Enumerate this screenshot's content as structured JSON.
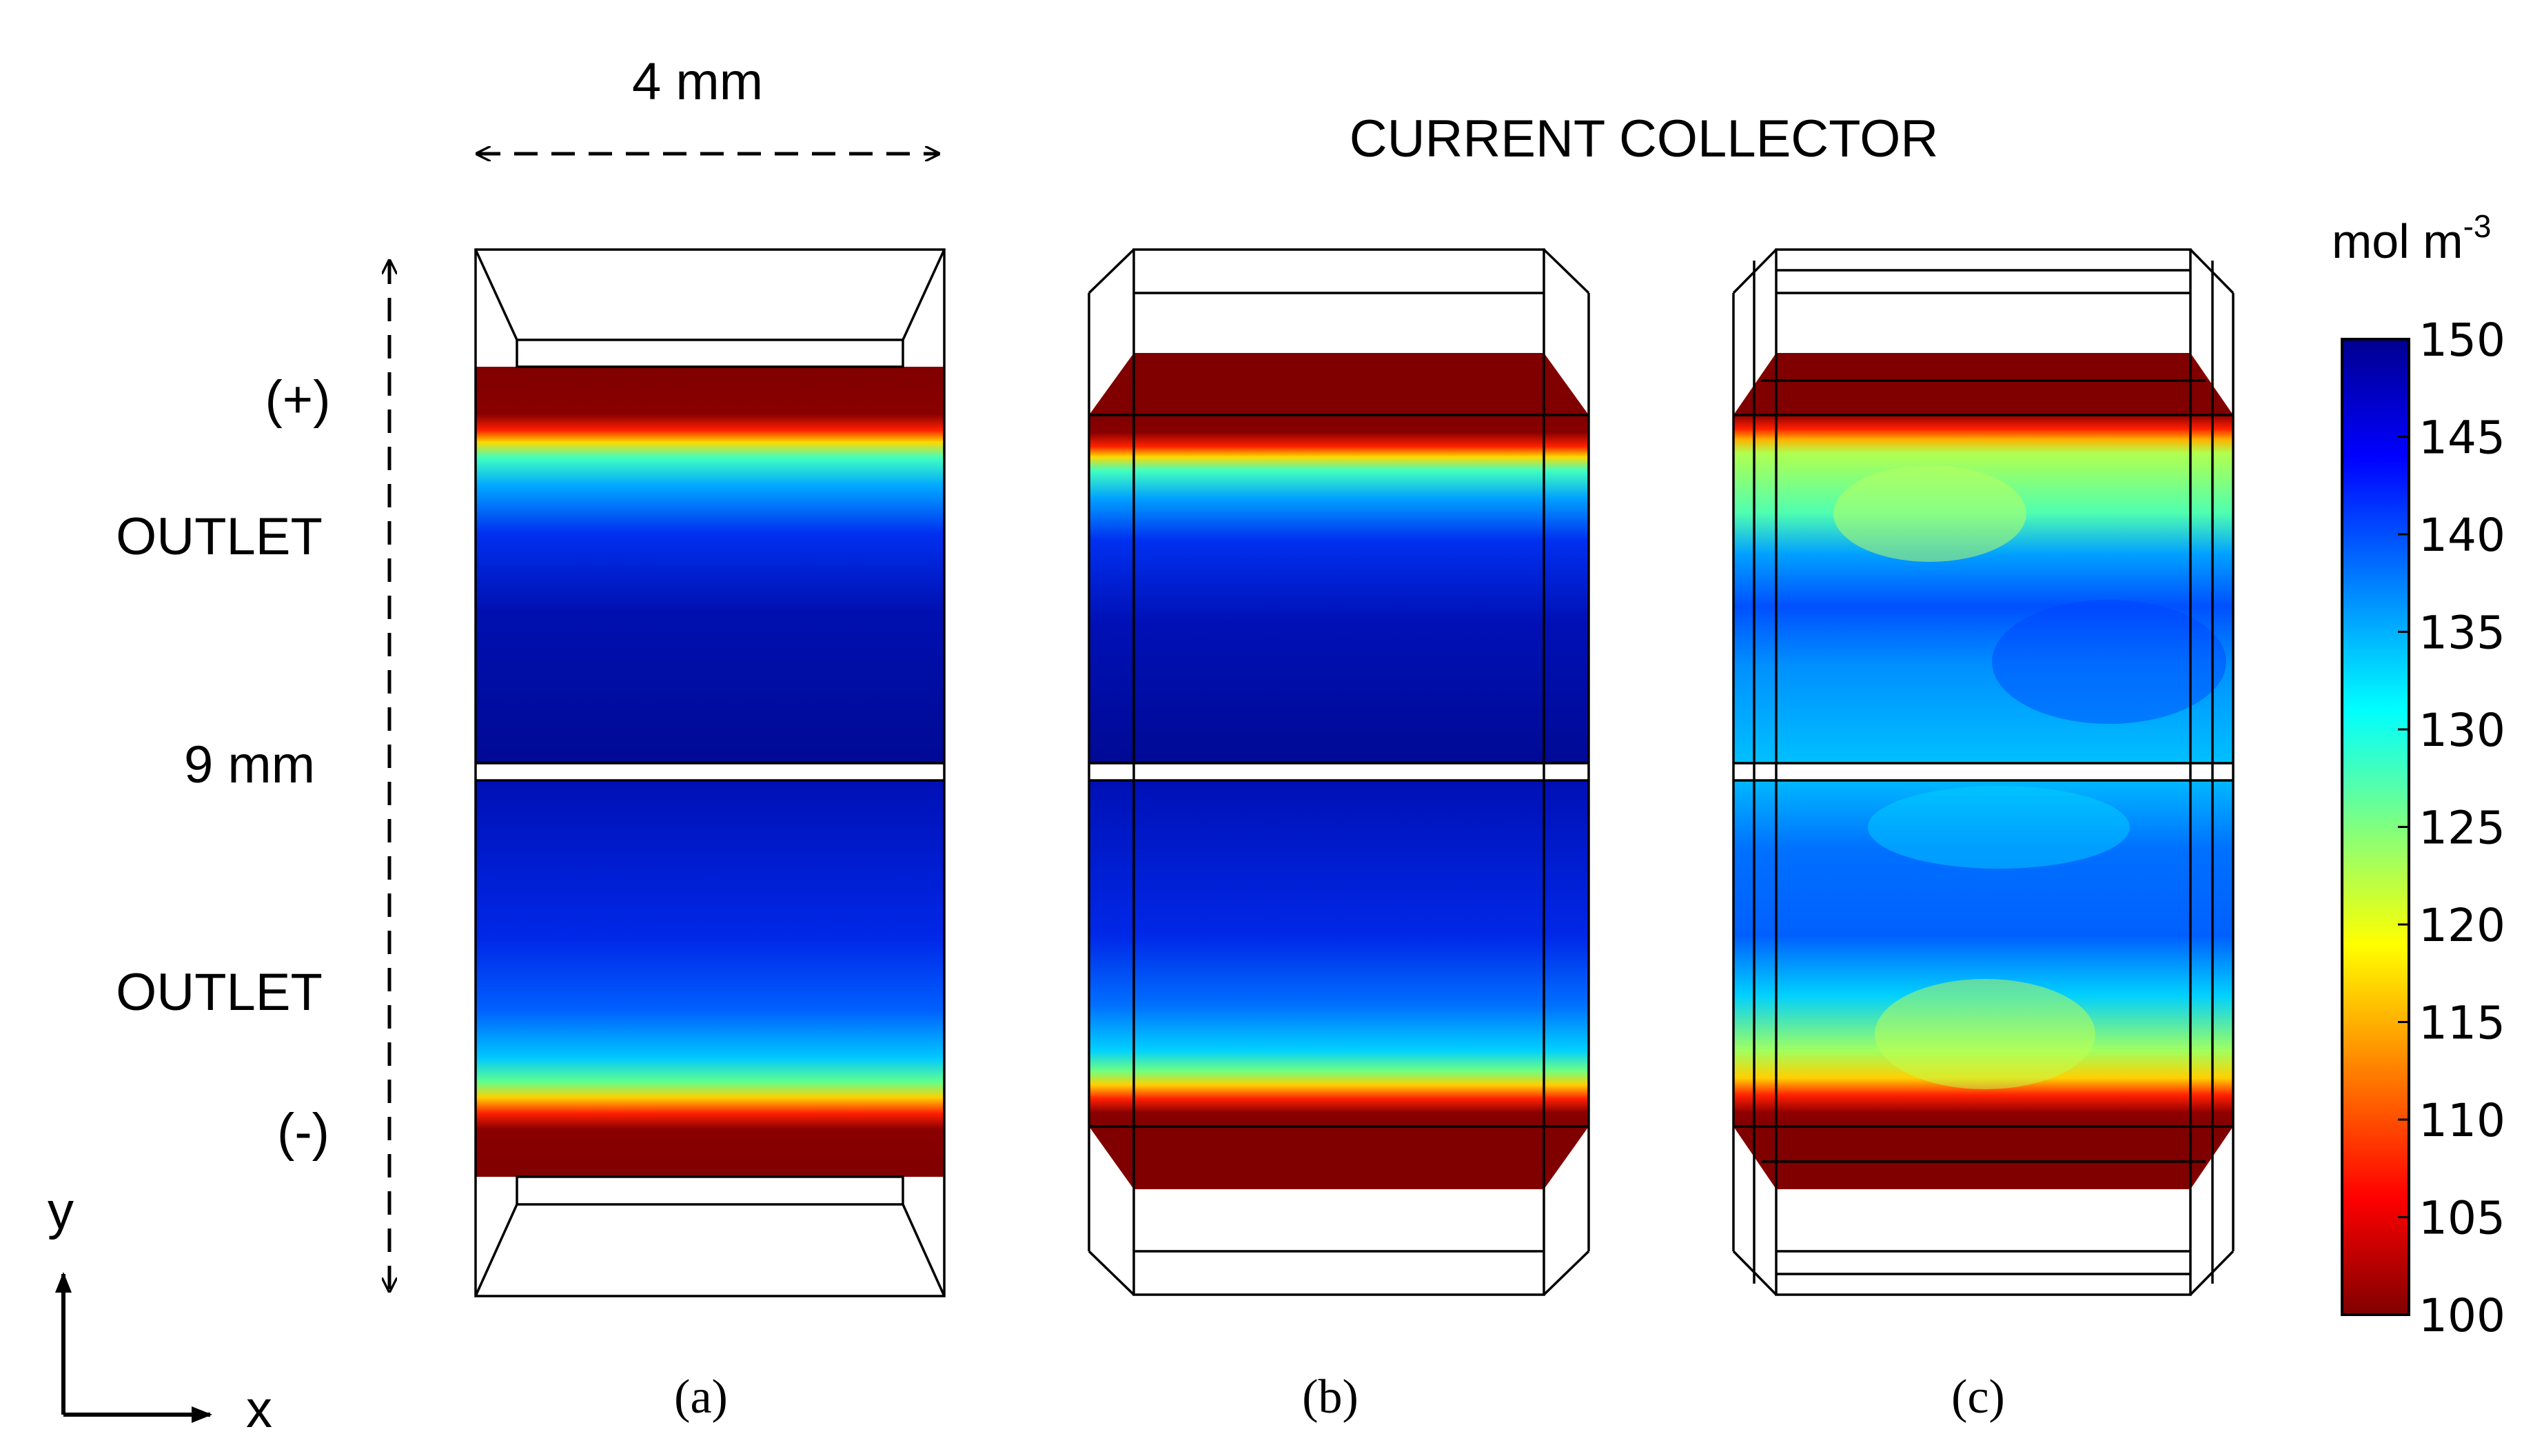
{
  "labels": {
    "width_dimension": "4 mm",
    "height_dimension": "9 mm",
    "current_collector": "CURRENT COLLECTOR",
    "outlet_top": "OUTLET",
    "outlet_bottom": "OUTLET",
    "pole_positive": "(+)",
    "pole_negative": "(-)",
    "axis_y": "y",
    "axis_x": "x"
  },
  "panels": [
    {
      "id": "a",
      "caption": "(a)"
    },
    {
      "id": "b",
      "caption": "(b)"
    },
    {
      "id": "c",
      "caption": "(c)"
    }
  ],
  "colorbar": {
    "unit_base": "mol m",
    "unit_exponent": "-3",
    "min": 100,
    "max": 150,
    "ticks": [
      "150",
      "145",
      "140",
      "135",
      "130",
      "125",
      "120",
      "115",
      "110",
      "105",
      "100"
    ],
    "colormap": [
      "#00008f",
      "#0000ff",
      "#00ffff",
      "#ffff00",
      "#ff0000",
      "#800000"
    ]
  },
  "colors": {
    "low": "#800000",
    "mid_low": "#ff0000",
    "mid": "#ffff00",
    "mid_high": "#00ffff",
    "high": "#0000ff",
    "max": "#00008f"
  }
}
